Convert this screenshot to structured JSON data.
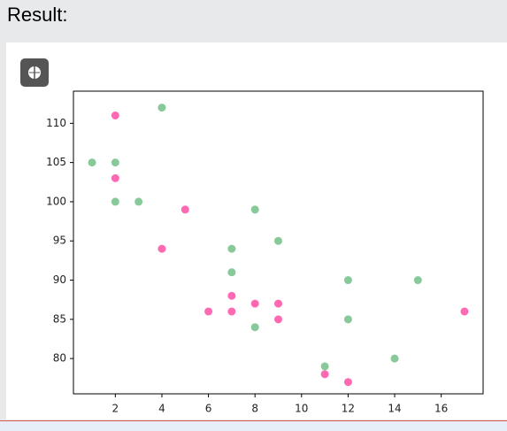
{
  "header": {
    "title": "Result:"
  },
  "chart_data": {
    "type": "scatter",
    "series": [
      {
        "color": "hotpink",
        "x": [
          5,
          7,
          8,
          7,
          2,
          17,
          2,
          9,
          4,
          11,
          12,
          9,
          6
        ],
        "values": [
          99,
          86,
          87,
          88,
          111,
          86,
          103,
          87,
          94,
          78,
          77,
          85,
          86
        ]
      },
      {
        "color": "#88c999",
        "x": [
          2,
          2,
          8,
          1,
          15,
          8,
          12,
          9,
          7,
          3,
          11,
          4,
          7,
          14,
          12
        ],
        "values": [
          100,
          105,
          84,
          105,
          90,
          99,
          90,
          95,
          94,
          100,
          79,
          112,
          91,
          80,
          85
        ]
      }
    ],
    "xlim": [
      0.2,
      17.8
    ],
    "xticks": [
      2,
      4,
      6,
      8,
      10,
      12,
      14,
      16
    ],
    "ylim": [
      75.5,
      114.1
    ],
    "yticks": [
      80,
      85,
      90,
      95,
      100,
      105,
      110
    ]
  }
}
